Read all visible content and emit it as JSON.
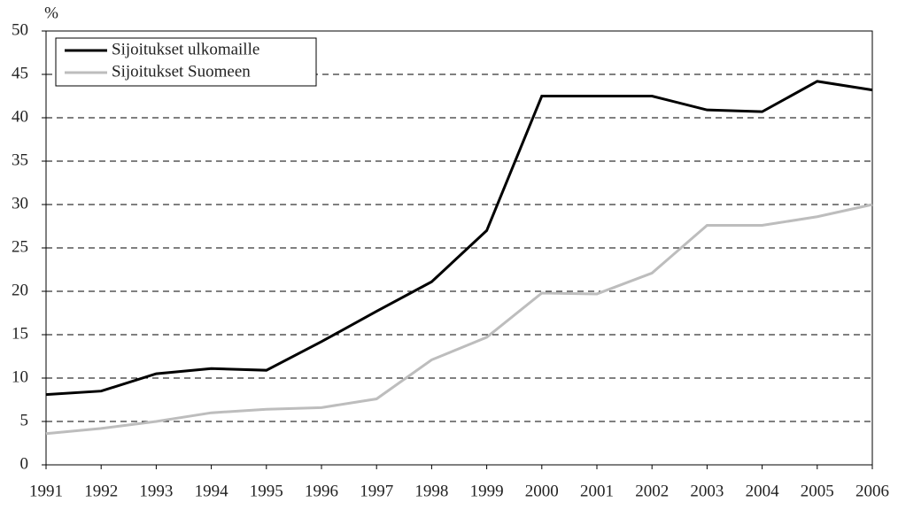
{
  "chart_data": {
    "type": "line",
    "y_unit": "%",
    "categories": [
      "1991",
      "1992",
      "1993",
      "1994",
      "1995",
      "1996",
      "1997",
      "1998",
      "1999",
      "2000",
      "2001",
      "2002",
      "2003",
      "2004",
      "2005",
      "2006"
    ],
    "series": [
      {
        "name": "Sijoitukset ulkomaille",
        "color": "#000000",
        "values": [
          8.1,
          8.5,
          10.5,
          11.1,
          10.9,
          14.2,
          17.7,
          21.1,
          27.0,
          42.5,
          42.5,
          42.5,
          40.9,
          40.7,
          44.2,
          43.2
        ]
      },
      {
        "name": "Sijoitukset Suomeen",
        "color": "#bdbdbd",
        "values": [
          3.6,
          4.2,
          5.0,
          6.0,
          6.4,
          6.6,
          7.6,
          12.1,
          14.7,
          19.8,
          19.7,
          22.1,
          27.6,
          27.6,
          28.6,
          30.0
        ]
      }
    ],
    "ylim": [
      0,
      50
    ],
    "yticks": [
      0,
      5,
      10,
      15,
      20,
      25,
      30,
      35,
      40,
      45,
      50
    ],
    "grid": true,
    "legend": "top-left"
  }
}
